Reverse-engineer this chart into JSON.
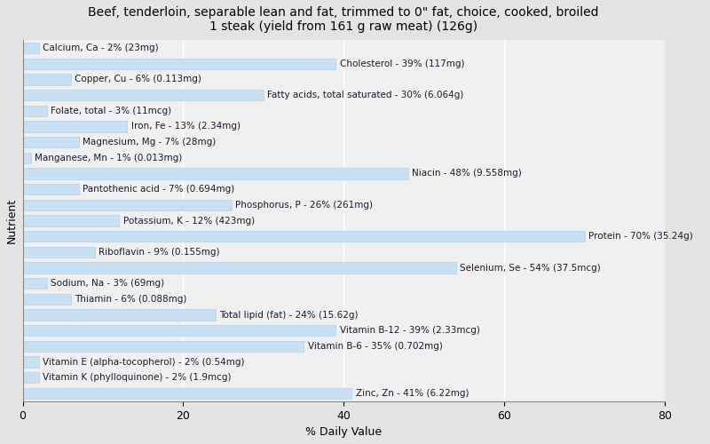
{
  "title": "Beef, tenderloin, separable lean and fat, trimmed to 0\" fat, choice, cooked, broiled\n1 steak (yield from 161 g raw meat) (126g)",
  "xlabel": "% Daily Value",
  "ylabel": "Nutrient",
  "xlim": [
    0,
    80
  ],
  "nutrients": [
    {
      "label": "Calcium, Ca - 2% (23mg)",
      "value": 2
    },
    {
      "label": "Cholesterol - 39% (117mg)",
      "value": 39
    },
    {
      "label": "Copper, Cu - 6% (0.113mg)",
      "value": 6
    },
    {
      "label": "Fatty acids, total saturated - 30% (6.064g)",
      "value": 30
    },
    {
      "label": "Folate, total - 3% (11mcg)",
      "value": 3
    },
    {
      "label": "Iron, Fe - 13% (2.34mg)",
      "value": 13
    },
    {
      "label": "Magnesium, Mg - 7% (28mg)",
      "value": 7
    },
    {
      "label": "Manganese, Mn - 1% (0.013mg)",
      "value": 1
    },
    {
      "label": "Niacin - 48% (9.558mg)",
      "value": 48
    },
    {
      "label": "Pantothenic acid - 7% (0.694mg)",
      "value": 7
    },
    {
      "label": "Phosphorus, P - 26% (261mg)",
      "value": 26
    },
    {
      "label": "Potassium, K - 12% (423mg)",
      "value": 12
    },
    {
      "label": "Protein - 70% (35.24g)",
      "value": 70
    },
    {
      "label": "Riboflavin - 9% (0.155mg)",
      "value": 9
    },
    {
      "label": "Selenium, Se - 54% (37.5mcg)",
      "value": 54
    },
    {
      "label": "Sodium, Na - 3% (69mg)",
      "value": 3
    },
    {
      "label": "Thiamin - 6% (0.088mg)",
      "value": 6
    },
    {
      "label": "Total lipid (fat) - 24% (15.62g)",
      "value": 24
    },
    {
      "label": "Vitamin B-12 - 39% (2.33mcg)",
      "value": 39
    },
    {
      "label": "Vitamin B-6 - 35% (0.702mg)",
      "value": 35
    },
    {
      "label": "Vitamin E (alpha-tocopherol) - 2% (0.54mg)",
      "value": 2
    },
    {
      "label": "Vitamin K (phylloquinone) - 2% (1.9mcg)",
      "value": 2
    },
    {
      "label": "Zinc, Zn - 41% (6.22mg)",
      "value": 41
    }
  ],
  "bar_color": "#c9dff2",
  "bar_edge_color": "#a8c8e8",
  "text_color": "#1a1a2e",
  "background_color": "#e4e4e4",
  "plot_background": "#f0f0f0",
  "title_fontsize": 10,
  "axis_label_fontsize": 9,
  "tick_fontsize": 9,
  "bar_label_fontsize": 7.5,
  "bar_height": 0.7
}
